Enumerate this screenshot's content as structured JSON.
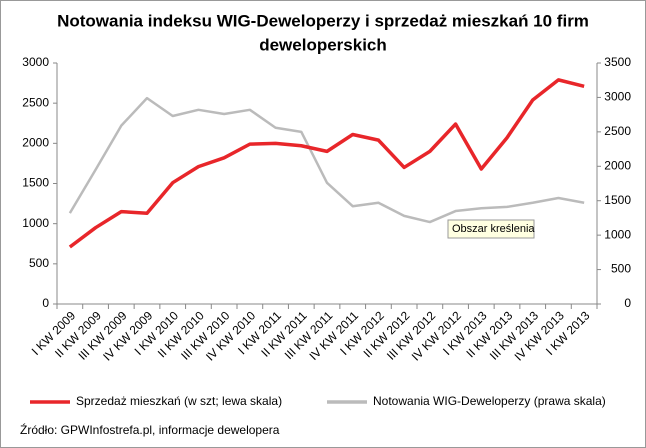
{
  "chart_data": {
    "type": "line",
    "title": "Notowania indeksu WIG-Deweloperzy i sprzedaż mieszkań 10 firm",
    "title_line2": "deweloperskich",
    "categories": [
      "I KW 2009",
      "II KW 2009",
      "III KW 2009",
      "IV KW 2009",
      "I KW 2010",
      "II KW 2010",
      "III KW 2010",
      "IV KW 2010",
      "I KW 2011",
      "II KW 2011",
      "III KW 2011",
      "IV KW 2011",
      "I KW 2012",
      "II KW 2012",
      "III KW 2012",
      "IV KW 2012",
      "I KW 2013",
      "II KW 2013",
      "III KW 2013",
      "IV KW 2013",
      "I KW 2013"
    ],
    "series": [
      {
        "name": "Sprzedaż mieszkań (w szt; lewa skala)",
        "color": "#e8262a",
        "axis": "y",
        "values": [
          710,
          950,
          1150,
          1130,
          1510,
          1710,
          1820,
          1990,
          2000,
          1970,
          1900,
          2110,
          2040,
          1700,
          1900,
          2240,
          1680,
          2070,
          2540,
          2790,
          2710
        ]
      },
      {
        "name": "Notowania WIG-Deweloperzy (prawa skala)",
        "color": "#bbbbbb",
        "axis": "y2",
        "values": [
          1320,
          1950,
          2590,
          2990,
          2730,
          2820,
          2760,
          2820,
          2560,
          2500,
          1760,
          1420,
          1470,
          1280,
          1190,
          1350,
          1390,
          1410,
          1470,
          1540,
          1470
        ]
      }
    ],
    "ylim": [
      0,
      3000
    ],
    "yticks": [
      0,
      500,
      1000,
      1500,
      2000,
      2500,
      3000
    ],
    "y2lim": [
      0,
      3500
    ],
    "y2ticks": [
      0,
      500,
      1000,
      1500,
      2000,
      2500,
      3000,
      3500
    ],
    "grid": false,
    "legend": "bottom",
    "tooltip": "Obszar kreślenia",
    "source": "Źródło: GPWInfostrefa.pl, informacje dewelopera"
  }
}
